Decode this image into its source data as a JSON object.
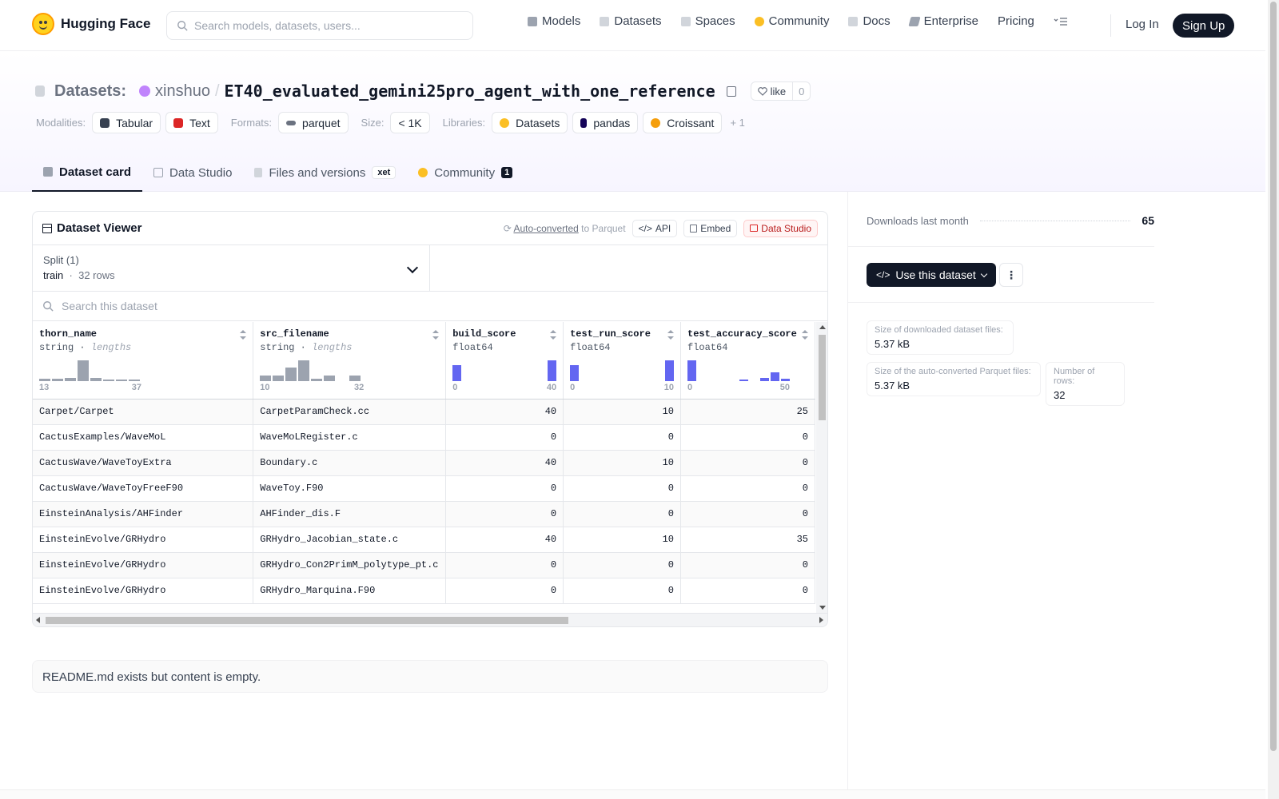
{
  "nav": {
    "brand": "Hugging Face",
    "search_placeholder": "Search models, datasets, users...",
    "links": [
      {
        "label": "Models",
        "icon": "models-icon",
        "color": "#9ca3af"
      },
      {
        "label": "Datasets",
        "icon": "datasets-icon",
        "color": "#d1d5db"
      },
      {
        "label": "Spaces",
        "icon": "spaces-icon",
        "color": "#d1d5db"
      },
      {
        "label": "Community",
        "icon": "community-icon",
        "color": "#fbbf24"
      },
      {
        "label": "Docs",
        "icon": "docs-icon",
        "color": "#d1d5db"
      },
      {
        "label": "Enterprise",
        "icon": "enterprise-icon",
        "color": "#9ca3af"
      },
      {
        "label": "Pricing"
      }
    ],
    "login": "Log In",
    "signup": "Sign Up"
  },
  "header": {
    "section": "Datasets:",
    "owner": "xinshuo",
    "repo": "ET40_evaluated_gemini25pro_agent_with_one_reference",
    "like_label": "like",
    "like_count": "0",
    "modalities_label": "Modalities:",
    "modalities": [
      "Tabular",
      "Text"
    ],
    "formats_label": "Formats:",
    "formats": [
      "parquet"
    ],
    "size_label": "Size:",
    "size": "< 1K",
    "libraries_label": "Libraries:",
    "libraries": [
      "Datasets",
      "pandas",
      "Croissant"
    ],
    "libraries_more": "+ 1"
  },
  "tabs": [
    {
      "label": "Dataset card",
      "active": true
    },
    {
      "label": "Data Studio"
    },
    {
      "label": "Files and versions",
      "badge": "xet"
    },
    {
      "label": "Community",
      "count": "1"
    }
  ],
  "viewer": {
    "title": "Dataset Viewer",
    "auto_converted": "Auto-converted",
    "to_parquet": "to Parquet",
    "api": "API",
    "embed": "Embed",
    "data_studio": "Data Studio",
    "split_label": "Split (1)",
    "split_name": "train",
    "split_rows": "32 rows",
    "search_placeholder": "Search this dataset",
    "columns": [
      {
        "name": "thorn_name",
        "type": "string",
        "stat": "lengths",
        "min": "13",
        "max": "37"
      },
      {
        "name": "src_filename",
        "type": "string",
        "stat": "lengths",
        "min": "10",
        "max": "32"
      },
      {
        "name": "build_score",
        "type": "float64",
        "min": "0",
        "max": "40"
      },
      {
        "name": "test_run_score",
        "type": "float64",
        "min": "0",
        "max": "10"
      },
      {
        "name": "test_accuracy_score",
        "type": "float64",
        "min": "0",
        "max": "50"
      }
    ],
    "rows": [
      [
        "Carpet/Carpet",
        "CarpetParamCheck.cc",
        "40",
        "10",
        "25"
      ],
      [
        "CactusExamples/WaveMoL",
        "WaveMoLRegister.c",
        "0",
        "0",
        "0"
      ],
      [
        "CactusWave/WaveToyExtra",
        "Boundary.c",
        "40",
        "10",
        "0"
      ],
      [
        "CactusWave/WaveToyFreeF90",
        "WaveToy.F90",
        "0",
        "0",
        "0"
      ],
      [
        "EinsteinAnalysis/AHFinder",
        "AHFinder_dis.F",
        "0",
        "0",
        "0"
      ],
      [
        "EinsteinEvolve/GRHydro",
        "GRHydro_Jacobian_state.c",
        "40",
        "10",
        "35"
      ],
      [
        "EinsteinEvolve/GRHydro",
        "GRHydro_Con2PrimM_polytype_pt.c",
        "0",
        "0",
        "0"
      ],
      [
        "EinsteinEvolve/GRHydro",
        "GRHydro_Marquina.F90",
        "0",
        "0",
        "0"
      ]
    ]
  },
  "readme": "README.md exists but content is empty.",
  "sidebar": {
    "downloads_label": "Downloads last month",
    "downloads_value": "65",
    "use_button": "Use this dataset",
    "stats": [
      {
        "label": "Size of downloaded dataset files:",
        "value": "5.37 kB"
      },
      {
        "label": "Size of the auto-converted Parquet files:",
        "value": "5.37 kB"
      },
      {
        "label": "Number of rows:",
        "value": "32"
      }
    ]
  },
  "colors": {
    "accent_blue": "#6366f1",
    "gray_bar": "#9ca3af",
    "dark": "#111827"
  }
}
